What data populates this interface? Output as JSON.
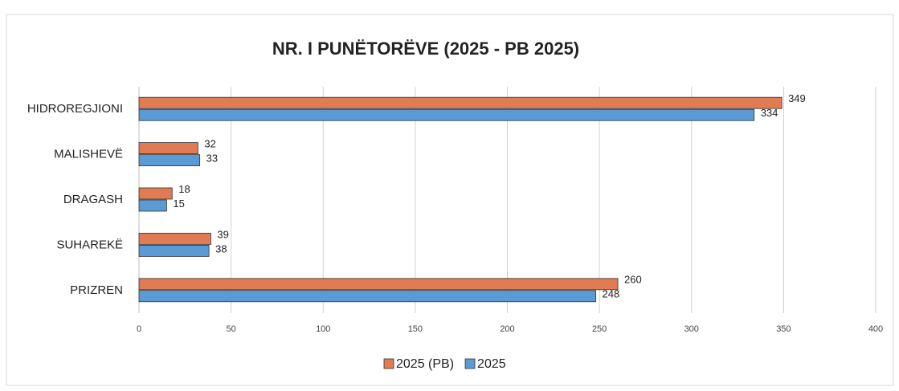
{
  "chart_data": {
    "type": "bar",
    "orientation": "horizontal",
    "title": "NR. I PUNËTORËVE (2025 - PB 2025)",
    "categories": [
      "HIDROREGJIONI",
      "MALISHEVË",
      "DRAGASH",
      "SUHAREKË",
      "PRIZREN"
    ],
    "series": [
      {
        "name": "2025 (PB)",
        "color": "#e07b54",
        "values": [
          349,
          32,
          18,
          39,
          260
        ]
      },
      {
        "name": "2025",
        "color": "#5b9bd5",
        "values": [
          334,
          33,
          15,
          38,
          248
        ]
      }
    ],
    "xlim": [
      0,
      400
    ],
    "xticks": [
      0,
      50,
      100,
      150,
      200,
      250,
      300,
      350,
      400
    ],
    "grid": true,
    "legend": "bottom"
  }
}
